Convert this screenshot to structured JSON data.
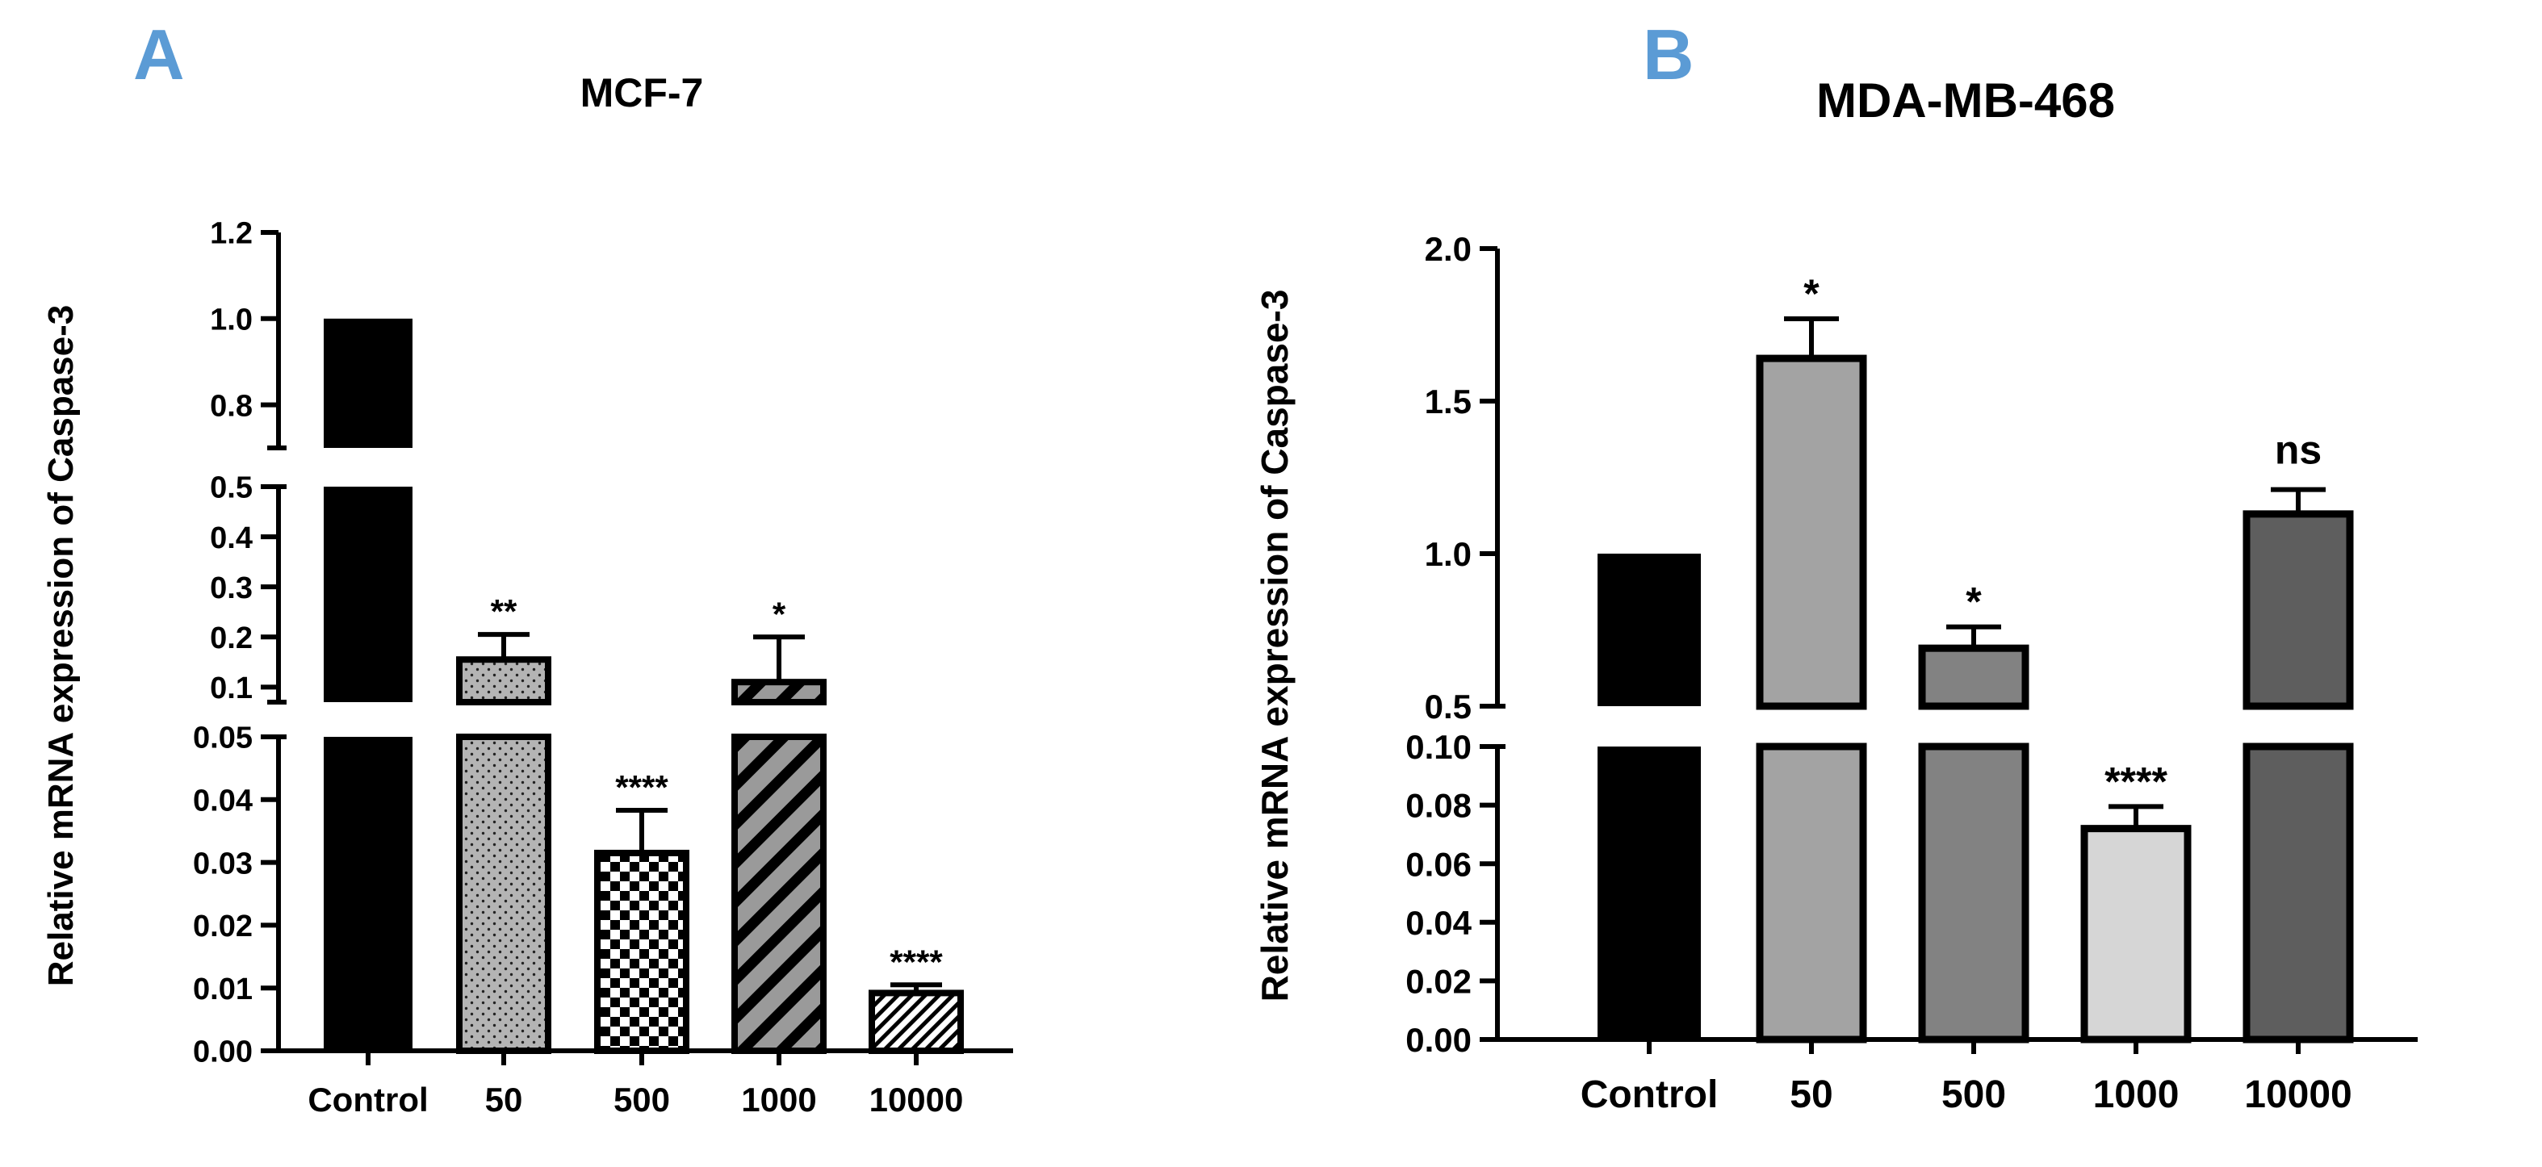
{
  "chart_data": [
    {
      "panel": "A",
      "type": "bar",
      "title": "MCF-7",
      "ylabel": "Relative mRNA expression of Caspase-3",
      "xlabel": "",
      "categories": [
        "Control",
        "50",
        "500",
        "1000",
        "10000"
      ],
      "values": [
        1.0,
        0.155,
        0.0315,
        0.11,
        0.0092
      ],
      "errors": [
        0,
        0.05,
        0.0068,
        0.09,
        0.0013
      ],
      "significance": [
        "",
        "**",
        "****",
        "*",
        "****"
      ],
      "bar_colors": [
        "#000000",
        "#b0b0b0",
        "#ffffff",
        "#8f8f8f",
        "#ffffff"
      ],
      "bar_patterns": [
        "solid",
        "dots",
        "checker",
        "diagonal",
        "diagonal-dense"
      ],
      "axis_segments": [
        {
          "range": [
            0,
            0.05
          ],
          "ticks": [
            "0.00",
            "0.01",
            "0.02",
            "0.03",
            "0.04",
            "0.05"
          ]
        },
        {
          "range": [
            0.07,
            0.5
          ],
          "ticks": [
            "0.1",
            "0.2",
            "0.3",
            "0.4",
            "0.5"
          ]
        },
        {
          "range": [
            0.7,
            1.2
          ],
          "ticks": [
            "0.8",
            "1.0",
            "1.2"
          ]
        }
      ],
      "grid": false
    },
    {
      "panel": "B",
      "type": "bar",
      "title": "MDA-MB-468",
      "ylabel": "Relative mRNA expression of Caspase-3",
      "xlabel": "",
      "categories": [
        "Control",
        "50",
        "500",
        "1000",
        "10000"
      ],
      "values": [
        1.0,
        1.64,
        0.69,
        0.072,
        1.13
      ],
      "errors": [
        0,
        0.13,
        0.07,
        0.0075,
        0.08
      ],
      "significance": [
        "",
        "*",
        "*",
        "****",
        "ns"
      ],
      "bar_colors": [
        "#000000",
        "#a0a0a0",
        "#808080",
        "#d4d4d4",
        "#5e5e5e"
      ],
      "axis_segments": [
        {
          "range": [
            0,
            0.1
          ],
          "ticks": [
            "0.00",
            "0.02",
            "0.04",
            "0.06",
            "0.08",
            "0.10"
          ]
        },
        {
          "range": [
            0.5,
            2.0
          ],
          "ticks": [
            "0.5",
            "1.0",
            "1.5",
            "2.0"
          ]
        }
      ],
      "grid": false
    }
  ]
}
